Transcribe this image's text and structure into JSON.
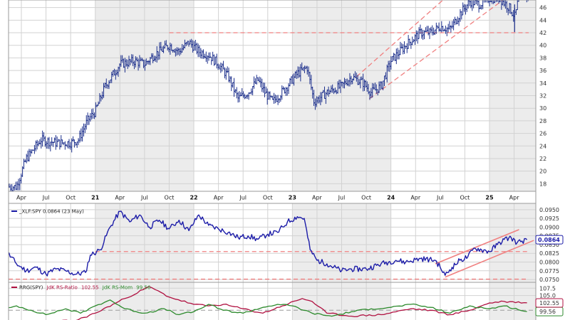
{
  "chart_data": [
    {
      "type": "ohlc",
      "title": "",
      "y_ticks": [
        18,
        20,
        22,
        24,
        26,
        28,
        30,
        32,
        34,
        36,
        38,
        40,
        42,
        44,
        46
      ],
      "ylim": [
        16.8,
        47.2
      ],
      "x_tick_labels": [
        "Apr",
        "Jul",
        "Oct",
        "21",
        "Apr",
        "Jul",
        "Oct",
        "22",
        "Apr",
        "Jul",
        "Oct",
        "23",
        "Apr",
        "Jul",
        "Oct",
        "24",
        "Apr",
        "Jul",
        "Oct",
        "25",
        "Apr"
      ],
      "price_path": [
        [
          2020.2,
          17.5
        ],
        [
          2020.3,
          22.0
        ],
        [
          2020.45,
          25.0
        ],
        [
          2020.6,
          24.5
        ],
        [
          2020.75,
          24.5
        ],
        [
          2020.83,
          25.0
        ],
        [
          2020.92,
          28.0
        ],
        [
          2021.0,
          29.5
        ],
        [
          2021.1,
          33.5
        ],
        [
          2021.25,
          37.0
        ],
        [
          2021.4,
          37.5
        ],
        [
          2021.5,
          37.0
        ],
        [
          2021.6,
          38.5
        ],
        [
          2021.75,
          40.0
        ],
        [
          2021.85,
          39.0
        ],
        [
          2021.95,
          40.5
        ],
        [
          2022.05,
          39.0
        ],
        [
          2022.15,
          38.5
        ],
        [
          2022.25,
          37.0
        ],
        [
          2022.35,
          35.0
        ],
        [
          2022.45,
          31.5
        ],
        [
          2022.55,
          32.5
        ],
        [
          2022.65,
          34.5
        ],
        [
          2022.72,
          32.5
        ],
        [
          2022.8,
          31.0
        ],
        [
          2022.92,
          33.0
        ],
        [
          2023.05,
          35.5
        ],
        [
          2023.15,
          36.5
        ],
        [
          2023.22,
          31.0
        ],
        [
          2023.35,
          32.5
        ],
        [
          2023.5,
          33.5
        ],
        [
          2023.6,
          35.0
        ],
        [
          2023.72,
          34.0
        ],
        [
          2023.8,
          32.5
        ],
        [
          2023.9,
          33.5
        ],
        [
          2024.0,
          37.5
        ],
        [
          2024.15,
          40.0
        ],
        [
          2024.3,
          42.0
        ],
        [
          2024.4,
          42.0
        ],
        [
          2024.5,
          43.0
        ],
        [
          2024.6,
          42.5
        ],
        [
          2024.7,
          45.0
        ],
        [
          2024.8,
          47.0
        ],
        [
          2024.9,
          46.5
        ],
        [
          2025.0,
          47.5
        ],
        [
          2025.1,
          47.5
        ],
        [
          2025.2,
          46.0
        ],
        [
          2025.26,
          44.5
        ],
        [
          2025.3,
          48.0
        ]
      ],
      "support_lines": [
        42.0
      ],
      "channel": {
        "lower": [
          [
            2023.78,
            31.5
          ],
          [
            2025.25,
            48.5
          ]
        ],
        "upper": [
          [
            2023.65,
            35.0
          ],
          [
            2024.55,
            47.5
          ]
        ]
      }
    },
    {
      "type": "line",
      "title": "_XLF:SPY 0.0864 (23 May)",
      "y_ticks": [
        0.075,
        0.0775,
        0.08,
        0.0825,
        0.085,
        0.0875,
        0.09,
        0.0925,
        0.095
      ],
      "y_tick_labels": [
        "0.0750",
        "0.0775",
        "0.0800",
        "0.0825",
        "0.0850",
        "0.0875",
        "0.0900",
        "0.0925",
        "0.0950"
      ],
      "ylim": [
        0.0742,
        0.0968
      ],
      "last_value": "0.0864",
      "series": [
        {
          "color": "#1c1ca8",
          "points": [
            [
              2020.0,
              0.0845
            ],
            [
              2020.1,
              0.083
            ],
            [
              2020.2,
              0.0795
            ],
            [
              2020.3,
              0.0775
            ],
            [
              2020.4,
              0.0785
            ],
            [
              2020.5,
              0.0765
            ],
            [
              2020.6,
              0.078
            ],
            [
              2020.7,
              0.0775
            ],
            [
              2020.8,
              0.0765
            ],
            [
              2020.9,
              0.077
            ],
            [
              2020.95,
              0.082
            ],
            [
              2021.05,
              0.0835
            ],
            [
              2021.15,
              0.09
            ],
            [
              2021.25,
              0.0945
            ],
            [
              2021.35,
              0.0915
            ],
            [
              2021.45,
              0.0935
            ],
            [
              2021.55,
              0.09
            ],
            [
              2021.65,
              0.092
            ],
            [
              2021.75,
              0.0895
            ],
            [
              2021.85,
              0.092
            ],
            [
              2021.95,
              0.089
            ],
            [
              2022.05,
              0.0935
            ],
            [
              2022.15,
              0.0905
            ],
            [
              2022.25,
              0.0895
            ],
            [
              2022.35,
              0.0885
            ],
            [
              2022.45,
              0.087
            ],
            [
              2022.55,
              0.0875
            ],
            [
              2022.65,
              0.0865
            ],
            [
              2022.75,
              0.088
            ],
            [
              2022.85,
              0.0885
            ],
            [
              2022.95,
              0.0915
            ],
            [
              2023.05,
              0.093
            ],
            [
              2023.12,
              0.0925
            ],
            [
              2023.18,
              0.0835
            ],
            [
              2023.25,
              0.0805
            ],
            [
              2023.35,
              0.0795
            ],
            [
              2023.5,
              0.0775
            ],
            [
              2023.6,
              0.078
            ],
            [
              2023.75,
              0.078
            ],
            [
              2023.9,
              0.0795
            ],
            [
              2024.05,
              0.0805
            ],
            [
              2024.15,
              0.08
            ],
            [
              2024.3,
              0.081
            ],
            [
              2024.45,
              0.0805
            ],
            [
              2024.5,
              0.0785
            ],
            [
              2024.55,
              0.0762
            ],
            [
              2024.62,
              0.0785
            ],
            [
              2024.7,
              0.0805
            ],
            [
              2024.78,
              0.0815
            ],
            [
              2024.85,
              0.084
            ],
            [
              2024.92,
              0.0835
            ],
            [
              2025.0,
              0.083
            ],
            [
              2025.08,
              0.085
            ],
            [
              2025.15,
              0.0865
            ],
            [
              2025.22,
              0.087
            ],
            [
              2025.28,
              0.0855
            ],
            [
              2025.33,
              0.086
            ],
            [
              2025.38,
              0.0864
            ]
          ]
        }
      ],
      "support_lines": [
        0.083,
        0.0751
      ],
      "channel": {
        "lower": [
          [
            2024.55,
            0.0757
          ],
          [
            2025.45,
            0.0862
          ]
        ],
        "upper": [
          [
            2024.45,
            0.0795
          ],
          [
            2025.3,
            0.0893
          ]
        ]
      }
    },
    {
      "type": "line",
      "title": "RRG(SPY) JdK RS-Ratio 102.55 JdK RS-Mom 99.56",
      "title_parts": [
        "RRG(SPY)",
        "JdK RS-Ratio",
        "102.55",
        "JdK RS-Mom",
        "99.56"
      ],
      "y_ticks": [
        99.56,
        102.5,
        105.0,
        107.5
      ],
      "y_tick_labels": [
        "99.56",
        "102.55",
        "105.0",
        "107.5"
      ],
      "ylim": [
        95.0,
        109.5
      ],
      "last_values": [
        "102.55",
        "99.56"
      ],
      "series": [
        {
          "name": "JdK RS-Ratio",
          "color": "#b01040",
          "points": [
            [
              2020.0,
              95.0
            ],
            [
              2020.4,
              96.0
            ],
            [
              2020.8,
              96.5
            ],
            [
              2021.0,
              99.0
            ],
            [
              2021.3,
              104.0
            ],
            [
              2021.55,
              108.0
            ],
            [
              2021.75,
              104.5
            ],
            [
              2022.0,
              102.0
            ],
            [
              2022.15,
              101.5
            ],
            [
              2022.3,
              102.0
            ],
            [
              2022.5,
              100.5
            ],
            [
              2022.7,
              99.0
            ],
            [
              2022.9,
              101.5
            ],
            [
              2023.1,
              104.0
            ],
            [
              2023.2,
              103.0
            ],
            [
              2023.35,
              99.0
            ],
            [
              2023.6,
              98.0
            ],
            [
              2023.9,
              98.5
            ],
            [
              2024.2,
              100.5
            ],
            [
              2024.4,
              100.0
            ],
            [
              2024.6,
              98.5
            ],
            [
              2024.8,
              100.0
            ],
            [
              2025.0,
              102.5
            ],
            [
              2025.15,
              103.0
            ],
            [
              2025.38,
              102.55
            ]
          ]
        },
        {
          "name": "JdK RS-Mom",
          "color": "#2c8a2c",
          "points": [
            [
              2020.0,
              99.5
            ],
            [
              2020.2,
              101.5
            ],
            [
              2020.35,
              100.0
            ],
            [
              2020.5,
              98.5
            ],
            [
              2020.7,
              100.5
            ],
            [
              2020.85,
              99.0
            ],
            [
              2021.0,
              101.5
            ],
            [
              2021.15,
              103.5
            ],
            [
              2021.3,
              100.5
            ],
            [
              2021.5,
              99.0
            ],
            [
              2021.7,
              100.5
            ],
            [
              2021.85,
              98.5
            ],
            [
              2022.0,
              99.5
            ],
            [
              2022.15,
              102.0
            ],
            [
              2022.3,
              100.0
            ],
            [
              2022.5,
              99.0
            ],
            [
              2022.7,
              101.0
            ],
            [
              2022.85,
              102.0
            ],
            [
              2023.0,
              101.5
            ],
            [
              2023.2,
              99.0
            ],
            [
              2023.4,
              98.0
            ],
            [
              2023.6,
              99.5
            ],
            [
              2023.8,
              100.5
            ],
            [
              2024.0,
              101.0
            ],
            [
              2024.2,
              102.0
            ],
            [
              2024.4,
              101.0
            ],
            [
              2024.6,
              99.0
            ],
            [
              2024.8,
              101.5
            ],
            [
              2025.0,
              100.5
            ],
            [
              2025.15,
              101.5
            ],
            [
              2025.38,
              99.56
            ]
          ]
        }
      ],
      "reference_line": 100.0
    }
  ]
}
